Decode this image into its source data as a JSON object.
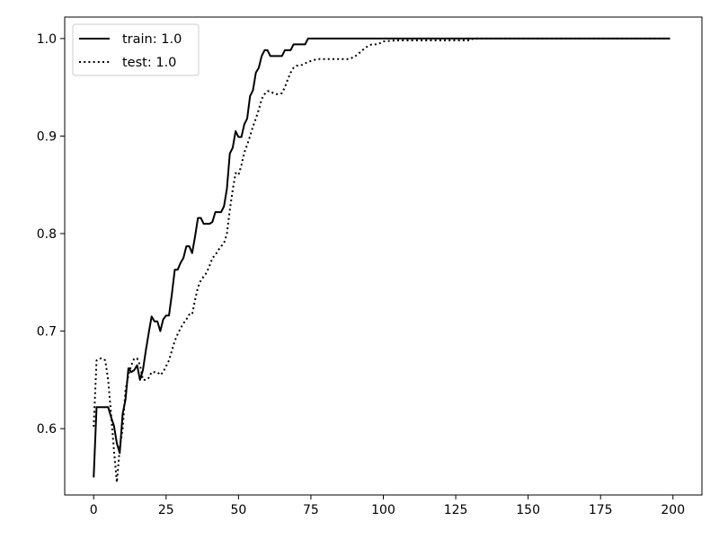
{
  "chart_data": {
    "type": "line",
    "title": "",
    "xlabel": "",
    "ylabel": "",
    "xlim": [
      -10,
      210
    ],
    "ylim": [
      0.532,
      1.022
    ],
    "xticks": [
      0,
      25,
      50,
      75,
      100,
      125,
      150,
      175,
      200
    ],
    "yticks": [
      0.6,
      0.7,
      0.8,
      0.9,
      1.0
    ],
    "ytick_labels": [
      "0.6",
      "0.7",
      "0.8",
      "0.9",
      "1.0"
    ],
    "grid": false,
    "legend": {
      "position": "top-left"
    },
    "series": [
      {
        "name": "train: 1.0",
        "color": "#000000",
        "style": "solid",
        "points": [
          [
            0,
            0.55
          ],
          [
            1,
            0.622
          ],
          [
            2,
            0.622
          ],
          [
            3,
            0.622
          ],
          [
            4,
            0.622
          ],
          [
            5,
            0.622
          ],
          [
            6,
            0.612
          ],
          [
            7,
            0.603
          ],
          [
            8,
            0.585
          ],
          [
            9,
            0.575
          ],
          [
            10,
            0.615
          ],
          [
            11,
            0.63
          ],
          [
            12,
            0.662
          ],
          [
            13,
            0.658
          ],
          [
            14,
            0.66
          ],
          [
            15,
            0.665
          ],
          [
            16,
            0.65
          ],
          [
            17,
            0.66
          ],
          [
            18,
            0.68
          ],
          [
            19,
            0.698
          ],
          [
            20,
            0.715
          ],
          [
            21,
            0.71
          ],
          [
            22,
            0.71
          ],
          [
            23,
            0.7
          ],
          [
            24,
            0.712
          ],
          [
            25,
            0.716
          ],
          [
            26,
            0.716
          ],
          [
            27,
            0.738
          ],
          [
            28,
            0.763
          ],
          [
            29,
            0.763
          ],
          [
            30,
            0.77
          ],
          [
            31,
            0.775
          ],
          [
            32,
            0.787
          ],
          [
            33,
            0.787
          ],
          [
            34,
            0.78
          ],
          [
            35,
            0.797
          ],
          [
            36,
            0.816
          ],
          [
            37,
            0.816
          ],
          [
            38,
            0.81
          ],
          [
            39,
            0.81
          ],
          [
            40,
            0.81
          ],
          [
            41,
            0.812
          ],
          [
            42,
            0.822
          ],
          [
            43,
            0.822
          ],
          [
            44,
            0.822
          ],
          [
            45,
            0.828
          ],
          [
            46,
            0.846
          ],
          [
            47,
            0.882
          ],
          [
            48,
            0.888
          ],
          [
            49,
            0.905
          ],
          [
            50,
            0.899
          ],
          [
            51,
            0.899
          ],
          [
            52,
            0.912
          ],
          [
            53,
            0.918
          ],
          [
            54,
            0.941
          ],
          [
            55,
            0.947
          ],
          [
            56,
            0.965
          ],
          [
            57,
            0.97
          ],
          [
            58,
            0.982
          ],
          [
            59,
            0.988
          ],
          [
            60,
            0.988
          ],
          [
            61,
            0.982
          ],
          [
            62,
            0.982
          ],
          [
            63,
            0.982
          ],
          [
            64,
            0.982
          ],
          [
            65,
            0.982
          ],
          [
            66,
            0.988
          ],
          [
            67,
            0.988
          ],
          [
            68,
            0.988
          ],
          [
            69,
            0.994
          ],
          [
            70,
            0.994
          ],
          [
            71,
            0.994
          ],
          [
            72,
            0.994
          ],
          [
            73,
            0.994
          ],
          [
            74,
            1.0
          ],
          [
            75,
            1.0
          ],
          [
            80,
            1.0
          ],
          [
            90,
            1.0
          ],
          [
            100,
            1.0
          ],
          [
            120,
            1.0
          ],
          [
            150,
            1.0
          ],
          [
            180,
            1.0
          ],
          [
            199,
            1.0
          ]
        ]
      },
      {
        "name": "test: 1.0",
        "color": "#000000",
        "style": "dotted",
        "points": [
          [
            0,
            0.602
          ],
          [
            1,
            0.67
          ],
          [
            2,
            0.672
          ],
          [
            3,
            0.672
          ],
          [
            4,
            0.67
          ],
          [
            5,
            0.65
          ],
          [
            6,
            0.615
          ],
          [
            7,
            0.578
          ],
          [
            8,
            0.545
          ],
          [
            9,
            0.58
          ],
          [
            10,
            0.6
          ],
          [
            11,
            0.64
          ],
          [
            12,
            0.655
          ],
          [
            13,
            0.665
          ],
          [
            14,
            0.672
          ],
          [
            15,
            0.672
          ],
          [
            16,
            0.665
          ],
          [
            17,
            0.65
          ],
          [
            18,
            0.65
          ],
          [
            19,
            0.652
          ],
          [
            20,
            0.658
          ],
          [
            21,
            0.658
          ],
          [
            22,
            0.658
          ],
          [
            23,
            0.655
          ],
          [
            24,
            0.658
          ],
          [
            25,
            0.664
          ],
          [
            26,
            0.67
          ],
          [
            27,
            0.68
          ],
          [
            28,
            0.69
          ],
          [
            29,
            0.697
          ],
          [
            30,
            0.703
          ],
          [
            31,
            0.708
          ],
          [
            32,
            0.712
          ],
          [
            33,
            0.717
          ],
          [
            34,
            0.717
          ],
          [
            35,
            0.732
          ],
          [
            36,
            0.745
          ],
          [
            37,
            0.752
          ],
          [
            38,
            0.756
          ],
          [
            39,
            0.76
          ],
          [
            40,
            0.767
          ],
          [
            41,
            0.775
          ],
          [
            42,
            0.778
          ],
          [
            43,
            0.783
          ],
          [
            44,
            0.787
          ],
          [
            45,
            0.79
          ],
          [
            46,
            0.8
          ],
          [
            47,
            0.824
          ],
          [
            48,
            0.845
          ],
          [
            49,
            0.862
          ],
          [
            50,
            0.86
          ],
          [
            51,
            0.87
          ],
          [
            52,
            0.883
          ],
          [
            53,
            0.891
          ],
          [
            54,
            0.9
          ],
          [
            55,
            0.91
          ],
          [
            56,
            0.918
          ],
          [
            57,
            0.927
          ],
          [
            58,
            0.938
          ],
          [
            59,
            0.943
          ],
          [
            60,
            0.946
          ],
          [
            61,
            0.946
          ],
          [
            62,
            0.944
          ],
          [
            63,
            0.943
          ],
          [
            64,
            0.943
          ],
          [
            65,
            0.944
          ],
          [
            66,
            0.95
          ],
          [
            67,
            0.958
          ],
          [
            68,
            0.965
          ],
          [
            69,
            0.97
          ],
          [
            70,
            0.972
          ],
          [
            72,
            0.973
          ],
          [
            74,
            0.976
          ],
          [
            76,
            0.978
          ],
          [
            78,
            0.979
          ],
          [
            80,
            0.979
          ],
          [
            84,
            0.979
          ],
          [
            88,
            0.979
          ],
          [
            90,
            0.981
          ],
          [
            92,
            0.986
          ],
          [
            94,
            0.991
          ],
          [
            96,
            0.994
          ],
          [
            98,
            0.994
          ],
          [
            100,
            0.997
          ],
          [
            104,
            0.998
          ],
          [
            110,
            0.998
          ],
          [
            120,
            0.998
          ],
          [
            130,
            0.998
          ],
          [
            131,
            1.0
          ],
          [
            140,
            1.0
          ],
          [
            160,
            1.0
          ],
          [
            180,
            1.0
          ],
          [
            199,
            1.0
          ]
        ]
      }
    ]
  }
}
